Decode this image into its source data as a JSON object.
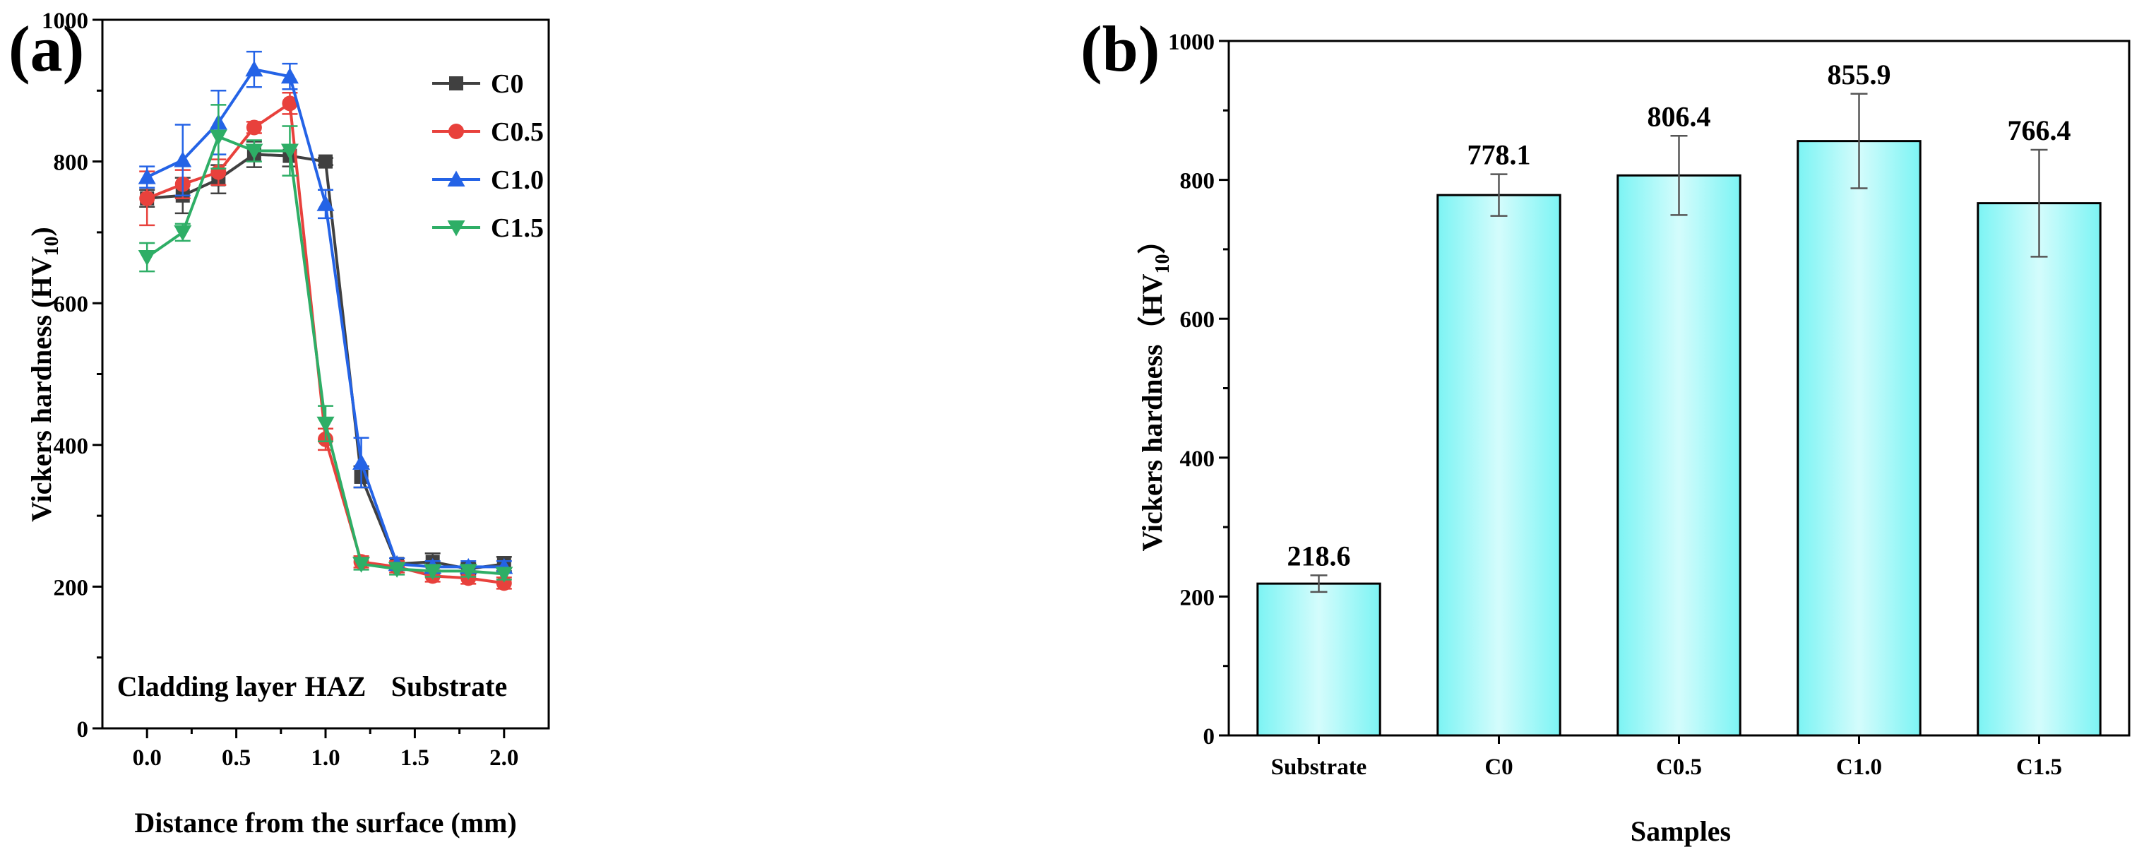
{
  "chart_data": [
    {
      "type": "line",
      "panel_label": "(a)",
      "xlabel": "Distance from the surface (mm)",
      "ylabel": "Vickers hardness (HV",
      "ylabel_sub": "10",
      "ylabel_close": ")",
      "xlim": [
        -0.25,
        2.25
      ],
      "ylim": [
        0,
        1000
      ],
      "xticks": [
        0.0,
        0.5,
        1.0,
        1.5,
        2.0
      ],
      "xtick_labels": [
        "0.0",
        "0.5",
        "1.0",
        "1.5",
        "2.0"
      ],
      "yticks": [
        0,
        200,
        400,
        600,
        800,
        1000
      ],
      "ytick_labels": [
        "0",
        "200",
        "400",
        "600",
        "800",
        "1000"
      ],
      "x": [
        0.0,
        0.2,
        0.4,
        0.6,
        0.8,
        1.0,
        1.2,
        1.4,
        1.6,
        1.8,
        2.0
      ],
      "series": [
        {
          "name": "C0",
          "color": "#404040",
          "marker": "square",
          "values": [
            748,
            752,
            775,
            810,
            808,
            800,
            355,
            232,
            235,
            225,
            232
          ],
          "errors": [
            12,
            25,
            20,
            18,
            15,
            5,
            15,
            8,
            12,
            8,
            10
          ]
        },
        {
          "name": "C0.5",
          "color": "#e8413c",
          "marker": "circle",
          "values": [
            748,
            768,
            785,
            848,
            882,
            408,
            235,
            228,
            215,
            212,
            205
          ],
          "errors": [
            38,
            20,
            18,
            8,
            15,
            15,
            8,
            8,
            8,
            8,
            8
          ]
        },
        {
          "name": "C1.0",
          "color": "#2463e6",
          "marker": "triangle-up",
          "values": [
            778,
            802,
            855,
            930,
            920,
            740,
            375,
            232,
            228,
            228,
            228
          ],
          "errors": [
            15,
            50,
            45,
            25,
            18,
            20,
            35,
            8,
            8,
            8,
            8
          ]
        },
        {
          "name": "C1.5",
          "color": "#2eae66",
          "marker": "triangle-down",
          "values": [
            665,
            700,
            835,
            815,
            815,
            430,
            232,
            225,
            222,
            222,
            218
          ],
          "errors": [
            20,
            12,
            45,
            15,
            35,
            25,
            8,
            8,
            8,
            8,
            8
          ]
        }
      ],
      "legend_position": "top-right",
      "annotations": [
        "Cladding layer",
        "HAZ",
        "Substrate"
      ]
    },
    {
      "type": "bar",
      "panel_label": "(b)",
      "xlabel": "Samples",
      "ylabel": "Vickers hardness（HV",
      "ylabel_sub": "10",
      "ylabel_close": "）",
      "ylim": [
        0,
        1000
      ],
      "yticks": [
        0,
        200,
        400,
        600,
        800,
        1000
      ],
      "ytick_labels": [
        "0",
        "200",
        "400",
        "600",
        "800",
        "1000"
      ],
      "categories": [
        "Substrate",
        "C0",
        "C0.5",
        "C1.0",
        "C1.5"
      ],
      "values": [
        218.6,
        778.1,
        806.4,
        855.9,
        766.4
      ],
      "value_labels": [
        "218.6",
        "778.1",
        "806.4",
        "855.9",
        "766.4"
      ],
      "errors": [
        12,
        30,
        57,
        68,
        77
      ],
      "bar_color": "#7cf4f4",
      "bar_highlight": "#d4fcfc"
    }
  ]
}
